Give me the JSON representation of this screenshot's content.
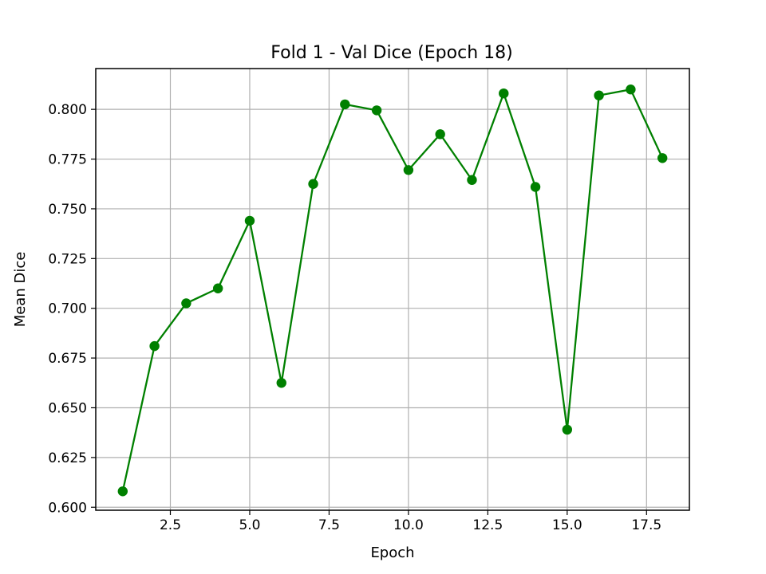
{
  "chart_data": {
    "type": "line",
    "title": "Fold 1 - Val Dice (Epoch 18)",
    "xlabel": "Epoch",
    "ylabel": "Mean Dice",
    "xlim": [
      0.15,
      18.85
    ],
    "ylim": [
      0.5985,
      0.8205
    ],
    "grid": true,
    "legend": "none",
    "x_ticks": [
      2.5,
      5.0,
      7.5,
      10.0,
      12.5,
      15.0,
      17.5
    ],
    "x_tick_labels": [
      "2.5",
      "5.0",
      "7.5",
      "10.0",
      "12.5",
      "15.0",
      "17.5"
    ],
    "y_ticks": [
      0.6,
      0.625,
      0.65,
      0.675,
      0.7,
      0.725,
      0.75,
      0.775,
      0.8
    ],
    "y_tick_labels": [
      "0.600",
      "0.625",
      "0.650",
      "0.675",
      "0.700",
      "0.725",
      "0.750",
      "0.775",
      "0.800"
    ],
    "series": [
      {
        "color": "#008000",
        "marker": "circle",
        "x": [
          1,
          2,
          3,
          4,
          5,
          6,
          7,
          8,
          9,
          10,
          11,
          12,
          13,
          14,
          15,
          16,
          17,
          18
        ],
        "values": [
          0.608,
          0.681,
          0.7025,
          0.71,
          0.744,
          0.6625,
          0.7625,
          0.8025,
          0.7995,
          0.7695,
          0.7875,
          0.7645,
          0.808,
          0.761,
          0.639,
          0.807,
          0.81,
          0.7755
        ]
      }
    ]
  }
}
